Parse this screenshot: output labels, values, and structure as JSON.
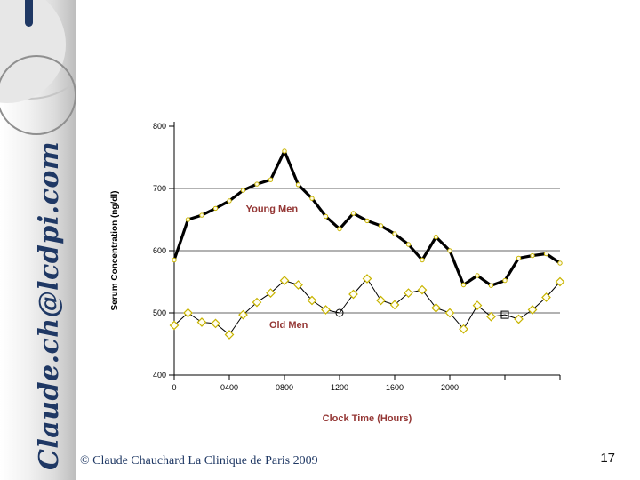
{
  "sidebar": {
    "email_vertical_text": "Claude.ch@lcdpi.com"
  },
  "footer": {
    "copyright": "© Claude Chauchard La Clinique de Paris 2009",
    "page_number": "17"
  },
  "chart_data": {
    "type": "line",
    "title": "",
    "x_label": "Clock Time (Hours)",
    "y_label": "Serum Concentration (ng/dl)",
    "label_color": "#943634",
    "marker_color": "#c8b400",
    "axis_color": "#000000",
    "ylim": [
      400,
      800
    ],
    "y_ticks": [
      400,
      500,
      600,
      700,
      800
    ],
    "gridline_values": [
      500,
      600,
      700
    ],
    "x_ticks": [
      {
        "hour": 0,
        "label": "0"
      },
      {
        "hour": 4,
        "label": "0400"
      },
      {
        "hour": 8,
        "label": "0800"
      },
      {
        "hour": 12,
        "label": "1200"
      },
      {
        "hour": 16,
        "label": "1600"
      },
      {
        "hour": 20,
        "label": "2000"
      },
      {
        "hour": 24,
        "label": ""
      },
      {
        "hour": 28,
        "label": ""
      }
    ],
    "hours": [
      0,
      1,
      2,
      3,
      4,
      5,
      6,
      7,
      8,
      9,
      10,
      11,
      12,
      13,
      14,
      15,
      16,
      17,
      18,
      19,
      20,
      21,
      22,
      23,
      24,
      25,
      26,
      27,
      28
    ],
    "series": [
      {
        "name": "Young Men",
        "line_color": "#000000",
        "line_width": 3.2,
        "marker": "small-circle",
        "values": [
          585,
          650,
          657,
          668,
          680,
          697,
          707,
          714,
          760,
          706,
          684,
          655,
          635,
          660,
          648,
          640,
          627,
          610,
          585,
          622,
          600,
          545,
          560,
          544,
          552,
          588,
          592,
          595,
          580
        ]
      },
      {
        "name": "Old Men",
        "line_color": "#000000",
        "line_width": 1,
        "marker": "diamond",
        "marker_overrides": {
          "12": "open-circle",
          "24": "open-square"
        },
        "values": [
          480,
          500,
          485,
          483,
          465,
          497,
          517,
          532,
          552,
          545,
          520,
          505,
          500,
          530,
          555,
          520,
          513,
          532,
          537,
          508,
          500,
          474,
          512,
          494,
          497,
          490,
          505,
          525,
          550
        ]
      }
    ],
    "series_labels": [
      {
        "text": "Young Men",
        "hour": 5.2,
        "value": 662
      },
      {
        "text": "Old Men",
        "hour": 6.9,
        "value": 476
      }
    ]
  }
}
